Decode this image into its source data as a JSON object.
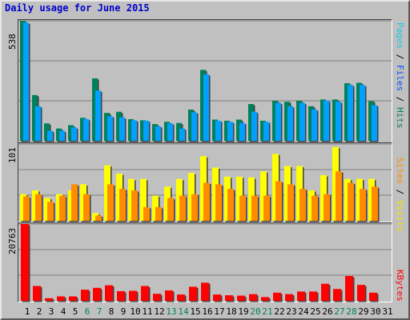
{
  "title": "Daily usage for June 2015",
  "colors": {
    "hits": "#00805c",
    "files": "#00a0ff",
    "pages": "#1ec8e8",
    "visits": "#ffff00",
    "sites": "#ff8c00",
    "kbytes": "#ff0000",
    "weekend_label": "#00805c",
    "weekday_label": "#000000"
  },
  "legend": {
    "pages": "Pages",
    "files": "Files",
    "hits": "Hits",
    "sites": "Sites",
    "visits": "Visits",
    "kbytes": "KBytes",
    "sep": " / "
  },
  "chart_data": {
    "type": "bar",
    "categories": [
      "1",
      "2",
      "3",
      "4",
      "5",
      "6",
      "7",
      "8",
      "9",
      "10",
      "11",
      "12",
      "13",
      "14",
      "15",
      "16",
      "17",
      "18",
      "19",
      "20",
      "21",
      "22",
      "23",
      "24",
      "25",
      "26",
      "27",
      "28",
      "29",
      "30",
      "31"
    ],
    "weekend_days": [
      "6",
      "7",
      "13",
      "14",
      "20",
      "21",
      "27",
      "28"
    ],
    "panels": [
      {
        "max_label": "538",
        "ymax": 538,
        "series": [
          {
            "name": "Hits",
            "values": [
              538,
              205,
              78,
              55,
              70,
              103,
              280,
              125,
              130,
              97,
              92,
              75,
              85,
              80,
              140,
              318,
              95,
              90,
              95,
              165,
              90,
              180,
              175,
              180,
              155,
              185,
              185,
              258,
              260,
              178,
              0
            ]
          },
          {
            "name": "Files",
            "values": [
              530,
              155,
              45,
              45,
              60,
              98,
              225,
              110,
              105,
              92,
              90,
              65,
              78,
              55,
              128,
              298,
              90,
              85,
              80,
              130,
              85,
              170,
              155,
              170,
              140,
              180,
              175,
              250,
              250,
              160,
              0
            ]
          }
        ]
      },
      {
        "max_label": "101",
        "ymax": 101,
        "series": [
          {
            "name": "Visits",
            "values": [
              35,
              40,
              30,
              35,
              40,
              48,
              10,
              73,
              62,
              55,
              55,
              33,
              45,
              55,
              63,
              85,
              70,
              58,
              58,
              57,
              65,
              88,
              72,
              72,
              40,
              60,
              97,
              55,
              55,
              55,
              0
            ]
          },
          {
            "name": "Sites",
            "values": [
              32,
              35,
              25,
              33,
              48,
              35,
              7,
              48,
              42,
              40,
              18,
              18,
              30,
              33,
              35,
              50,
              48,
              42,
              33,
              33,
              33,
              52,
              48,
              42,
              33,
              35,
              65,
              50,
              42,
              45,
              0
            ]
          }
        ]
      },
      {
        "max_label": "20763",
        "ymax": 20763,
        "series": [
          {
            "name": "KBytes",
            "values": [
              20763,
              4000,
              700,
              1200,
              1200,
              3000,
              3500,
              4200,
              2600,
              2700,
              4000,
              1900,
              2800,
              1700,
              3800,
              4900,
              1700,
              1500,
              1400,
              1800,
              1000,
              2200,
              1800,
              2500,
              2500,
              4600,
              3200,
              6700,
              4300,
              2200,
              0
            ]
          }
        ]
      }
    ]
  }
}
